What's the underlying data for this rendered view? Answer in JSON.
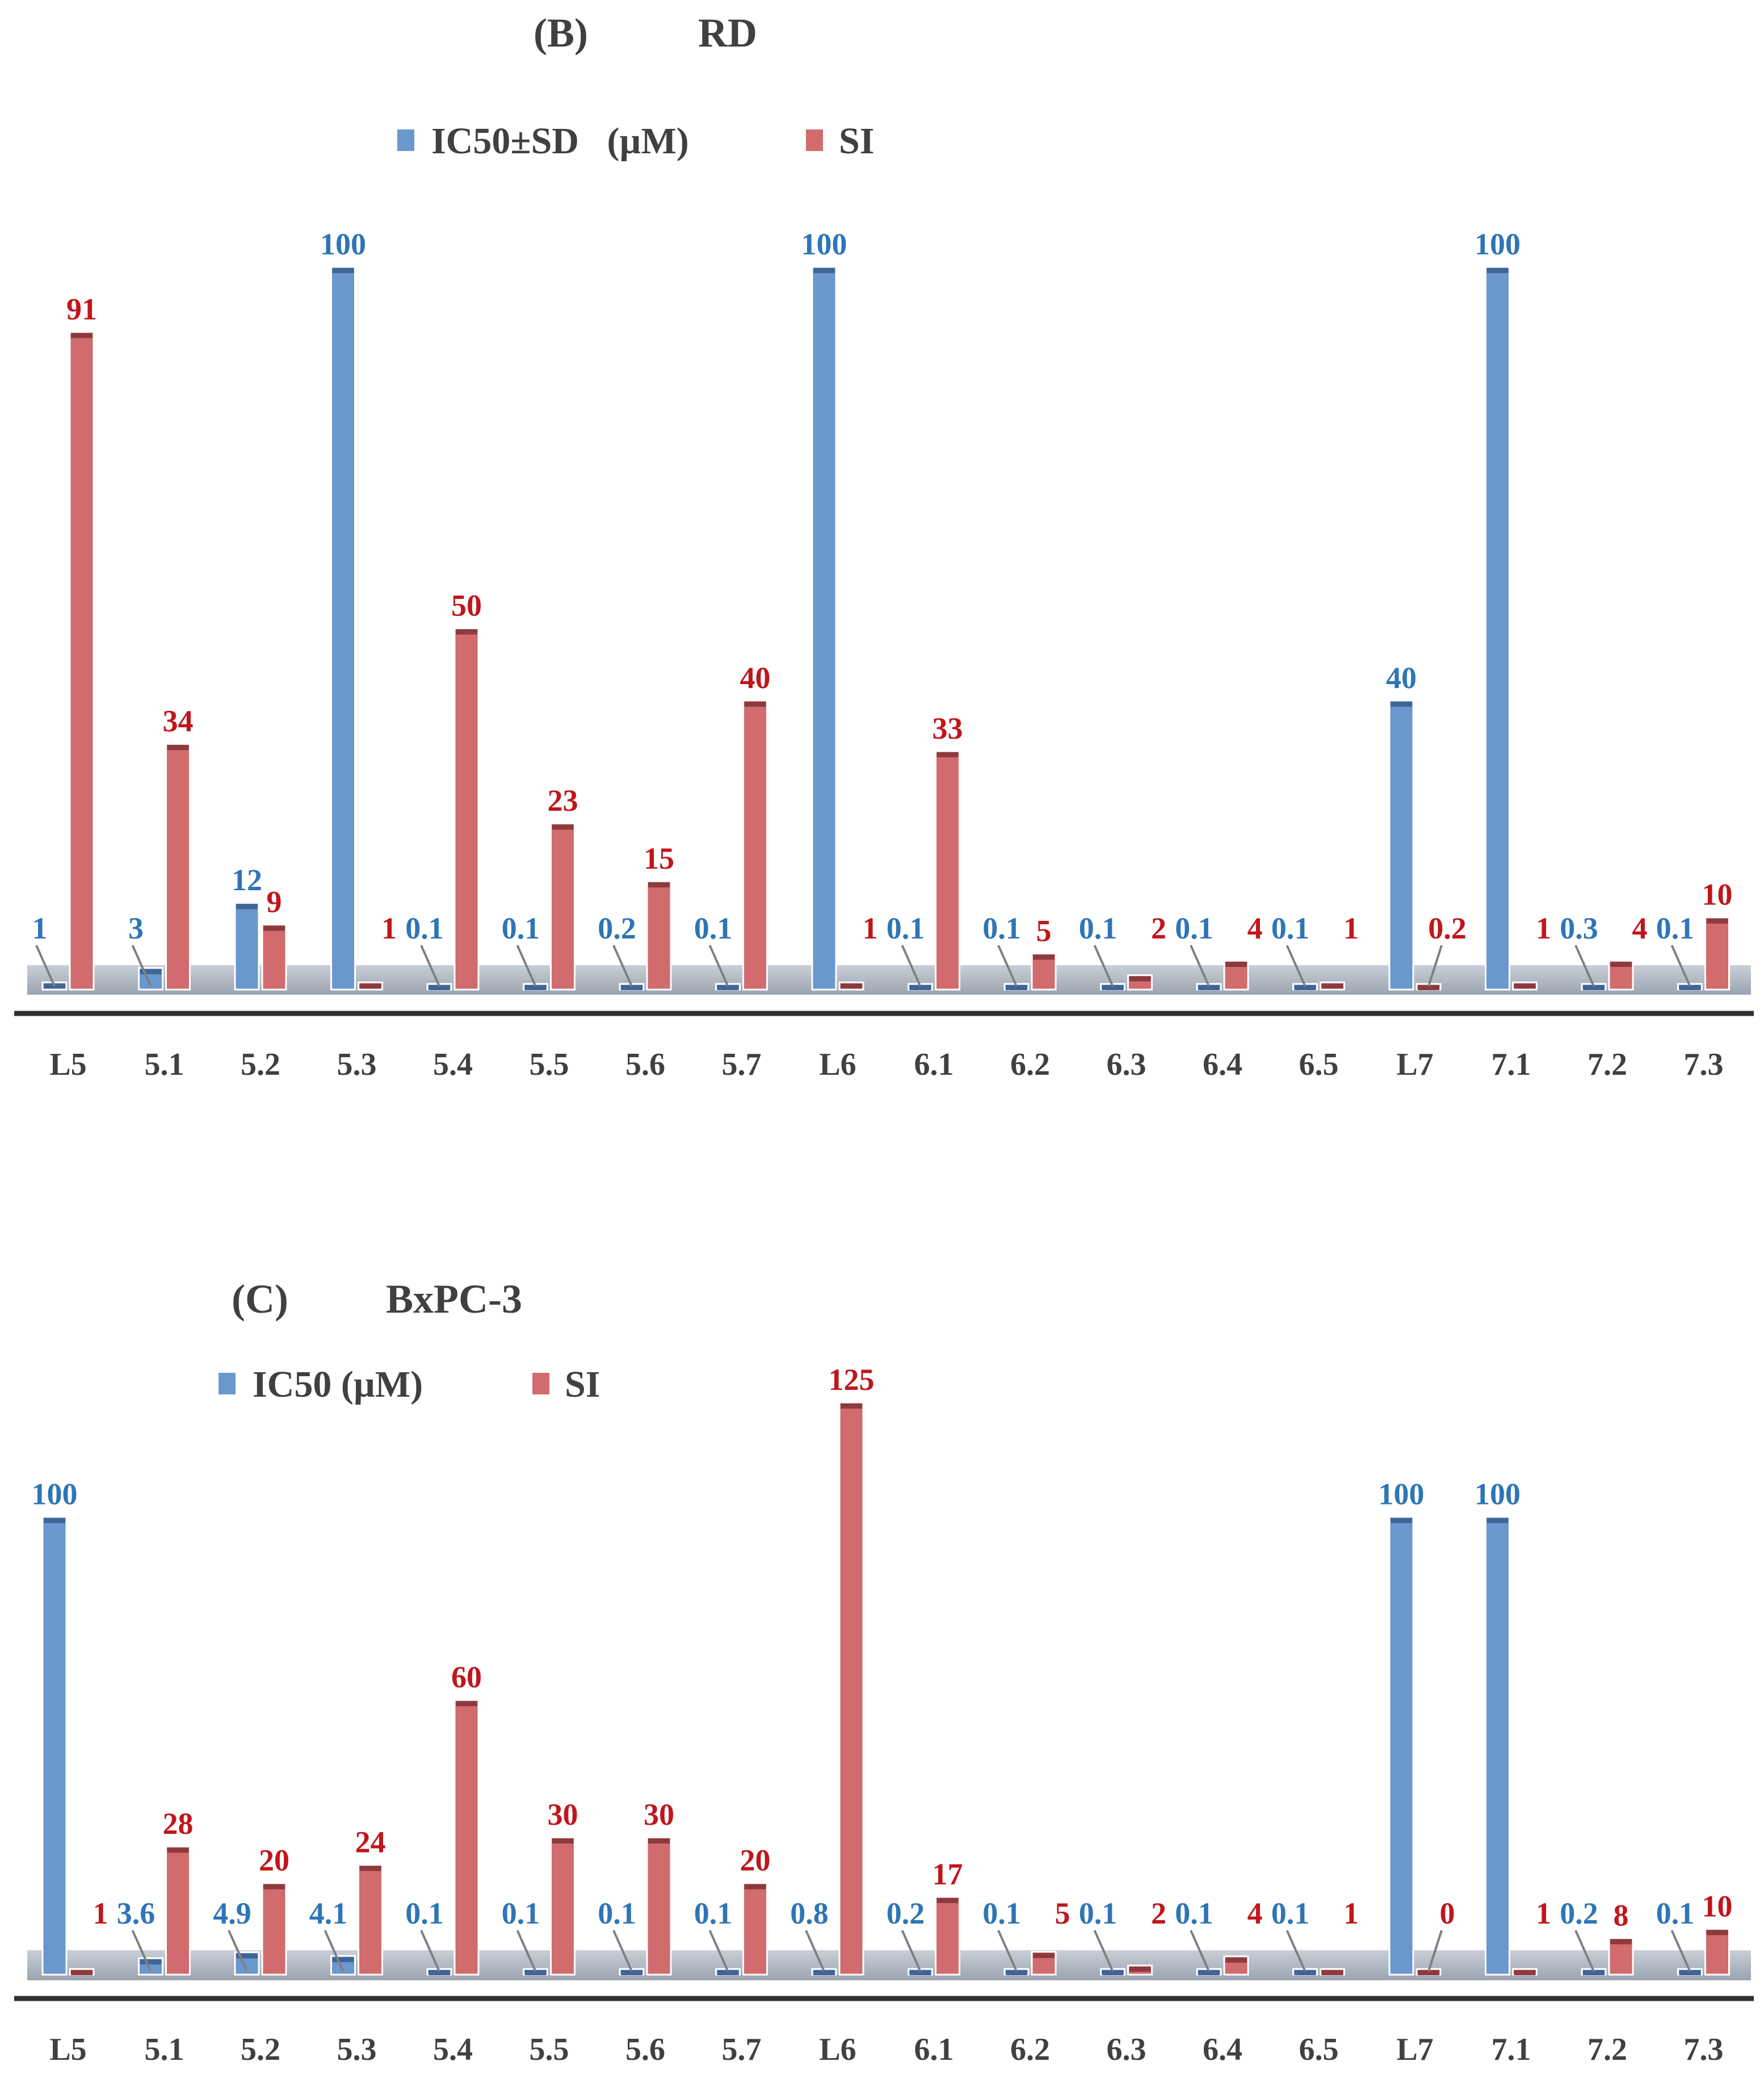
{
  "colors": {
    "ic50": "#6b97cf",
    "ic50_cap": "#3f6596",
    "ic50_label": "#2e75b6",
    "si": "#d26b6d",
    "si_cap": "#8c3a3d",
    "si_label": "#c0161b",
    "axis": "#303030",
    "floor": "#b7bec8",
    "text": "#404040"
  },
  "chart_data": [
    {
      "type": "bar",
      "panel": "(B)",
      "title": "RD",
      "categories": [
        "L5",
        "5.1",
        "5.2",
        "5.3",
        "5.4",
        "5.5",
        "5.6",
        "5.7",
        "L6",
        "6.1",
        "6.2",
        "6.3",
        "6.4",
        "6.5",
        "L7",
        "7.1",
        "7.2",
        "7.3"
      ],
      "series": [
        {
          "name": "IC50±SD   (µM)",
          "color_key": "ic50",
          "values": [
            1,
            3,
            12,
            100,
            0.1,
            0.1,
            0.2,
            0.1,
            100,
            0.1,
            0.1,
            0.1,
            0.1,
            0.1,
            40,
            100,
            0.3,
            0.1
          ],
          "labels": [
            "1",
            "3",
            "12",
            "100",
            "0.1",
            "0.1",
            "0.2",
            "0.1",
            "100",
            "0.1",
            "0.1",
            "0.1",
            "0.1",
            "0.1",
            "40",
            "100",
            "0.3",
            "0.1"
          ]
        },
        {
          "name": "SI",
          "color_key": "si",
          "values": [
            91,
            34,
            9,
            1,
            50,
            23,
            15,
            40,
            1,
            33,
            5,
            2,
            4,
            1,
            0.2,
            1,
            4,
            10
          ],
          "labels": [
            "91",
            "34",
            "9",
            "1",
            "50",
            "23",
            "15",
            "40",
            "1",
            "33",
            "5",
            "2",
            "4",
            "1",
            "0.2",
            "1",
            "4",
            "10"
          ]
        }
      ],
      "ylim": [
        0,
        100
      ],
      "legend_position": "top"
    },
    {
      "type": "bar",
      "panel": "(C)",
      "title": "BxPC-3",
      "categories": [
        "L5",
        "5.1",
        "5.2",
        "5.3",
        "5.4",
        "5.5",
        "5.6",
        "5.7",
        "L6",
        "6.1",
        "6.2",
        "6.3",
        "6.4",
        "6.5",
        "L7",
        "7.1",
        "7.2",
        "7.3"
      ],
      "series": [
        {
          "name": "IC50 (µM)",
          "color_key": "ic50",
          "values": [
            100,
            3.6,
            4.9,
            4.1,
            0.1,
            0.1,
            0.1,
            0.1,
            0.8,
            0.2,
            0.1,
            0.1,
            0.1,
            0.1,
            100,
            100,
            0.2,
            0.1
          ],
          "labels": [
            "100",
            "3.6",
            "4.9",
            "4.1",
            "0.1",
            "0.1",
            "0.1",
            "0.1",
            "0.8",
            "0.2",
            "0.1",
            "0.1",
            "0.1",
            "0.1",
            "100",
            "100",
            "0.2",
            "0.1"
          ]
        },
        {
          "name": "SI",
          "color_key": "si",
          "values": [
            1,
            28,
            20,
            24,
            60,
            30,
            30,
            20,
            125,
            17,
            5,
            2,
            4,
            1,
            0,
            1,
            8,
            10
          ],
          "labels": [
            "1",
            "28",
            "20",
            "24",
            "60",
            "30",
            "30",
            "20",
            "125",
            "17",
            "5",
            "2",
            "4",
            "1",
            "0",
            "1",
            "8",
            "10"
          ]
        }
      ],
      "ylim": [
        0,
        125
      ],
      "legend_position": "top-left"
    }
  ]
}
